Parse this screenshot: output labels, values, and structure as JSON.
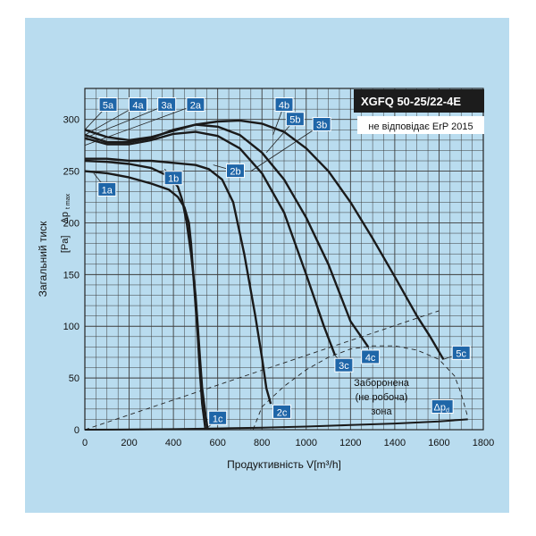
{
  "chart_data": {
    "type": "line",
    "title": "XGFQ 50-25/22-4E",
    "subtitle": "не відповідає ErP 2015",
    "xlabel": "Продуктивність V[m³/h]",
    "ylabel": "Загальний тиск",
    "ylabel_symbol": "Δp",
    "ylabel_subscript": "t max",
    "ylabel_unit": "[Pa]",
    "xlim": [
      0,
      1800
    ],
    "ylim": [
      0,
      330
    ],
    "x_ticks": [
      "0",
      "200",
      "400",
      "600",
      "800",
      "1000",
      "1200",
      "1400",
      "1600",
      "1800"
    ],
    "y_ticks": [
      "0",
      "50",
      "100",
      "150",
      "200",
      "250",
      "300"
    ],
    "grid": true,
    "zone_label": [
      "Заборонена",
      "(не робоча)",
      "зона"
    ],
    "colors": {
      "background": "#b9dcef",
      "grid": "#3c3c3c",
      "curve": "#1a1a1a",
      "label_fill": "#1f66a8",
      "title_bg": "#1c1c1c"
    },
    "series": [
      {
        "name": "1a",
        "x": [
          0,
          100,
          200,
          300,
          380,
          420,
          450,
          470,
          480,
          490,
          500,
          510,
          520,
          530,
          545
        ],
        "y": [
          250,
          248,
          244,
          238,
          232,
          225,
          215,
          200,
          180,
          150,
          120,
          90,
          55,
          25,
          0
        ]
      },
      {
        "name": "1b",
        "x": [
          0,
          100,
          200,
          300,
          380,
          420,
          440,
          460,
          480,
          500,
          510,
          520,
          530,
          545,
          555
        ],
        "y": [
          260,
          259,
          257,
          253,
          245,
          235,
          222,
          200,
          170,
          130,
          100,
          70,
          40,
          15,
          0
        ]
      },
      {
        "name": "2b",
        "x": [
          0,
          100,
          200,
          300,
          400,
          500,
          560,
          620,
          670,
          720,
          770,
          800,
          820,
          840
        ],
        "y": [
          262,
          262,
          260,
          260,
          258,
          256,
          252,
          242,
          220,
          170,
          110,
          70,
          40,
          25
        ]
      },
      {
        "name": "3c",
        "x": [
          0,
          100,
          200,
          300,
          400,
          500,
          600,
          700,
          800,
          900,
          1000,
          1080,
          1130
        ],
        "y": [
          282,
          276,
          276,
          280,
          286,
          288,
          284,
          272,
          248,
          210,
          150,
          100,
          72
        ]
      },
      {
        "name": "4c",
        "x": [
          0,
          100,
          200,
          300,
          400,
          500,
          600,
          700,
          800,
          900,
          1000,
          1100,
          1200,
          1280
        ],
        "y": [
          285,
          278,
          278,
          282,
          290,
          295,
          293,
          285,
          268,
          242,
          205,
          160,
          105,
          80
        ]
      },
      {
        "name": "5c",
        "x": [
          0,
          100,
          200,
          300,
          400,
          500,
          600,
          700,
          800,
          900,
          1000,
          1100,
          1200,
          1300,
          1400,
          1500,
          1560,
          1620
        ],
        "y": [
          290,
          283,
          280,
          283,
          289,
          295,
          298,
          299,
          296,
          288,
          272,
          250,
          220,
          185,
          148,
          110,
          90,
          68
        ]
      }
    ],
    "dashed_lines": [
      {
        "name": "system-curve",
        "x": [
          0,
          1600
        ],
        "y": [
          0,
          115
        ]
      },
      {
        "name": "forbidden-zone-boundary",
        "x": [
          760,
          800,
          900,
          1000,
          1100,
          1200,
          1300,
          1400,
          1500,
          1600,
          1670,
          1700,
          1730
        ],
        "y": [
          0,
          22,
          42,
          58,
          70,
          78,
          81,
          81,
          77,
          68,
          52,
          35,
          12
        ]
      }
    ],
    "dp_line": {
      "name": "Δpd",
      "x": [
        0,
        200,
        400,
        600,
        800,
        1000,
        1200,
        1400,
        1600,
        1730
      ],
      "y": [
        0,
        0.2,
        0.5,
        1.2,
        2,
        3,
        4.5,
        6,
        8,
        10
      ]
    },
    "labels": [
      {
        "text": "1a",
        "at": [
          100,
          232
        ]
      },
      {
        "text": "1b",
        "at": [
          400,
          243
        ]
      },
      {
        "text": "1c",
        "at": [
          600,
          11
        ]
      },
      {
        "text": "2a",
        "at": [
          500,
          314
        ]
      },
      {
        "text": "2b",
        "at": [
          680,
          250
        ]
      },
      {
        "text": "2c",
        "at": [
          890,
          17
        ]
      },
      {
        "text": "3a",
        "at": [
          370,
          314
        ]
      },
      {
        "text": "3b",
        "at": [
          1070,
          295
        ]
      },
      {
        "text": "3c",
        "at": [
          1170,
          62
        ]
      },
      {
        "text": "4a",
        "at": [
          240,
          314
        ]
      },
      {
        "text": "4b",
        "at": [
          900,
          314
        ]
      },
      {
        "text": "4c",
        "at": [
          1290,
          70
        ]
      },
      {
        "text": "5a",
        "at": [
          105,
          314
        ]
      },
      {
        "text": "5b",
        "at": [
          950,
          300
        ]
      },
      {
        "text": "5c",
        "at": [
          1700,
          74
        ]
      }
    ],
    "dp_label": {
      "symbol": "Δp",
      "subscript": "d",
      "at": [
        1615,
        22
      ]
    }
  }
}
